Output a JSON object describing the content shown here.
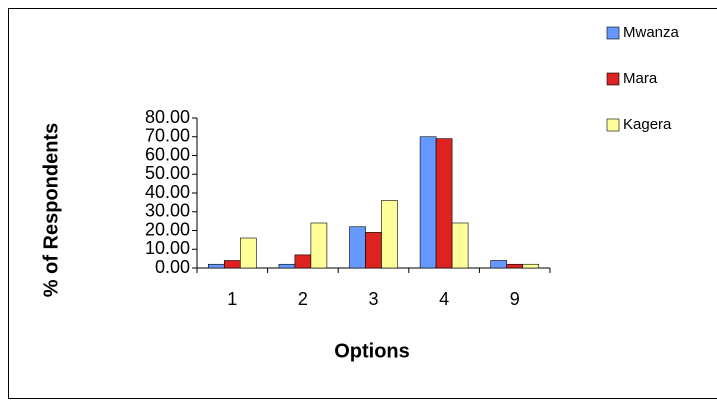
{
  "chart_data": {
    "type": "bar",
    "x_label": "Options",
    "y_label": "% of Respondents",
    "categories": [
      "1",
      "2",
      "3",
      "4",
      "9"
    ],
    "series": [
      {
        "name": "Mwanza",
        "color": "#6699ff",
        "values": [
          2,
          2,
          22,
          70,
          4
        ]
      },
      {
        "name": "Mara",
        "color": "#dd2222",
        "values": [
          4,
          7,
          19,
          69,
          2
        ]
      },
      {
        "name": "Kagera",
        "color": "#ffff99",
        "values": [
          16,
          24,
          36,
          24,
          2
        ]
      }
    ],
    "ylim": [
      0,
      80
    ],
    "yticks": [
      {
        "value": 0,
        "label": "0.00"
      },
      {
        "value": 10,
        "label": "10.00"
      },
      {
        "value": 20,
        "label": "20.00"
      },
      {
        "value": 30,
        "label": "30.00"
      },
      {
        "value": 40,
        "label": "40.00"
      },
      {
        "value": 50,
        "label": "50.00"
      },
      {
        "value": 60,
        "label": "60.00"
      },
      {
        "value": 70,
        "label": "70.00"
      },
      {
        "value": 80,
        "label": "80.00"
      }
    ],
    "legend": "right"
  }
}
